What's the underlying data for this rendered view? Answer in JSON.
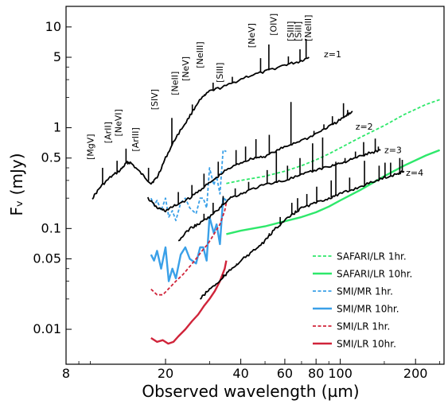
{
  "chart_data": {
    "type": "line",
    "xlabel": "Observed wavelength (µm)",
    "ylabel": "Fᵥ (mJy)",
    "xscale": "log",
    "yscale": "log",
    "xlim": [
      8,
      260
    ],
    "ylim": [
      0.0045,
      16
    ],
    "x_ticks": [
      {
        "value": 8,
        "label": "8"
      },
      {
        "value": 20,
        "label": "20"
      },
      {
        "value": 40,
        "label": "40"
      },
      {
        "value": 60,
        "label": "60"
      },
      {
        "value": 80,
        "label": "80"
      },
      {
        "value": 100,
        "label": "100"
      },
      {
        "value": 200,
        "label": "200"
      }
    ],
    "y_ticks": [
      {
        "value": 0.01,
        "label": "0.01"
      },
      {
        "value": 0.05,
        "label": "0.05"
      },
      {
        "value": 0.1,
        "label": "0.1"
      },
      {
        "value": 0.5,
        "label": "0.5"
      },
      {
        "value": 1,
        "label": "1"
      },
      {
        "value": 5,
        "label": "5"
      },
      {
        "value": 10,
        "label": "10"
      }
    ],
    "spectra": [
      {
        "label": "z=1",
        "label_at": [
          86,
          5.4
        ],
        "points": [
          [
            10.2,
            0.2
          ],
          [
            11,
            0.26
          ],
          [
            12,
            0.32
          ],
          [
            13.2,
            0.38
          ],
          [
            14,
            0.45
          ],
          [
            14.5,
            0.45
          ],
          [
            16,
            0.35
          ],
          [
            17.5,
            0.28
          ],
          [
            18.5,
            0.32
          ],
          [
            20,
            0.5
          ],
          [
            22,
            0.8
          ],
          [
            24.5,
            1.2
          ],
          [
            27,
            1.8
          ],
          [
            30,
            2.3
          ],
          [
            35,
            2.6
          ],
          [
            42,
            3.2
          ],
          [
            50,
            3.6
          ],
          [
            60,
            4.2
          ],
          [
            68,
            4.5
          ],
          [
            75,
            5.0
          ]
        ],
        "lines": [
          [
            11.2,
            0.4
          ],
          [
            12.8,
            0.47
          ],
          [
            13.9,
            0.62
          ],
          [
            17.1,
            0.4
          ],
          [
            21.2,
            1.25
          ],
          [
            25.6,
            1.7
          ],
          [
            28.6,
            2.15
          ],
          [
            31,
            2.8
          ],
          [
            37,
            3.2
          ],
          [
            48,
            4.9
          ],
          [
            51.8,
            6.7
          ],
          [
            62,
            5.1
          ],
          [
            69,
            6.0
          ],
          [
            73,
            7.6
          ]
        ]
      },
      {
        "label": "z=2",
        "label_at": [
          115,
          1.03
        ],
        "points": [
          [
            17,
            0.2
          ],
          [
            18.5,
            0.16
          ],
          [
            20,
            0.15
          ],
          [
            22,
            0.17
          ],
          [
            25,
            0.2
          ],
          [
            28,
            0.25
          ],
          [
            31,
            0.3
          ],
          [
            35,
            0.38
          ],
          [
            40,
            0.45
          ],
          [
            45,
            0.5
          ],
          [
            50,
            0.52
          ],
          [
            58,
            0.62
          ],
          [
            65,
            0.7
          ],
          [
            75,
            0.8
          ],
          [
            85,
            0.95
          ],
          [
            95,
            1.1
          ],
          [
            105,
            1.3
          ],
          [
            112,
            1.45
          ]
        ],
        "lines": [
          [
            22.5,
            0.23
          ],
          [
            25.5,
            0.27
          ],
          [
            28.5,
            0.35
          ],
          [
            32.5,
            0.46
          ],
          [
            38.3,
            0.6
          ],
          [
            41.8,
            0.65
          ],
          [
            46,
            0.77
          ],
          [
            52,
            0.85
          ],
          [
            63.5,
            1.8
          ],
          [
            78.5,
            0.93
          ],
          [
            86,
            1.08
          ],
          [
            93,
            1.3
          ],
          [
            103,
            1.75
          ],
          [
            107,
            1.5
          ]
        ]
      },
      {
        "label": "z=3",
        "label_at": [
          150,
          0.6
        ],
        "points": [
          [
            22.5,
            0.075
          ],
          [
            25,
            0.1
          ],
          [
            27,
            0.11
          ],
          [
            30,
            0.13
          ],
          [
            33,
            0.16
          ],
          [
            36,
            0.2
          ],
          [
            40,
            0.22
          ],
          [
            45,
            0.25
          ],
          [
            52,
            0.28
          ],
          [
            60,
            0.3
          ],
          [
            70,
            0.34
          ],
          [
            80,
            0.38
          ],
          [
            92,
            0.42
          ],
          [
            102,
            0.45
          ],
          [
            115,
            0.5
          ],
          [
            128,
            0.55
          ],
          [
            145,
            0.6
          ]
        ],
        "lines": [
          [
            28.5,
            0.14
          ],
          [
            31,
            0.18
          ],
          [
            34,
            0.21
          ],
          [
            38,
            0.25
          ],
          [
            43,
            0.29
          ],
          [
            51,
            0.38
          ],
          [
            55.5,
            0.58
          ],
          [
            61.5,
            0.42
          ],
          [
            69,
            0.5
          ],
          [
            77.5,
            0.7
          ],
          [
            85,
            0.8
          ],
          [
            104.5,
            0.5
          ],
          [
            115,
            0.58
          ],
          [
            124,
            0.72
          ],
          [
            138,
            0.78
          ],
          [
            142,
            0.65
          ]
        ]
      },
      {
        "label": "z=4",
        "label_at": [
          183,
          0.36
        ],
        "points": [
          [
            27.5,
            0.02
          ],
          [
            30,
            0.025
          ],
          [
            33,
            0.03
          ],
          [
            36,
            0.038
          ],
          [
            40,
            0.048
          ],
          [
            45,
            0.06
          ],
          [
            50,
            0.075
          ],
          [
            55,
            0.1
          ],
          [
            60,
            0.12
          ],
          [
            65,
            0.14
          ],
          [
            70,
            0.16
          ],
          [
            80,
            0.18
          ],
          [
            90,
            0.2
          ],
          [
            100,
            0.22
          ],
          [
            115,
            0.25
          ],
          [
            130,
            0.28
          ],
          [
            150,
            0.32
          ],
          [
            170,
            0.35
          ],
          [
            180,
            0.37
          ]
        ],
        "lines": [
          [
            34,
            0.035
          ],
          [
            38.5,
            0.045
          ],
          [
            42.5,
            0.055
          ],
          [
            49,
            0.072
          ],
          [
            52,
            0.09
          ],
          [
            57.5,
            0.13
          ],
          [
            64,
            0.18
          ],
          [
            67.5,
            0.2
          ],
          [
            73.5,
            0.22
          ],
          [
            80.5,
            0.26
          ],
          [
            92,
            0.3
          ],
          [
            96,
            0.46
          ],
          [
            109,
            0.32
          ],
          [
            125,
            0.47
          ],
          [
            143,
            0.42
          ],
          [
            151,
            0.45
          ],
          [
            159,
            0.45
          ],
          [
            173,
            0.5
          ],
          [
            177,
            0.48
          ]
        ]
      }
    ],
    "sensitivity_curves": [
      {
        "name": "SAFARI/LR 1hr.",
        "color": "#2ee86b",
        "style": "dashed",
        "points": [
          [
            35,
            0.28
          ],
          [
            40,
            0.3
          ],
          [
            50,
            0.33
          ],
          [
            60,
            0.37
          ],
          [
            70,
            0.42
          ],
          [
            80,
            0.48
          ],
          [
            90,
            0.55
          ],
          [
            100,
            0.63
          ],
          [
            120,
            0.8
          ],
          [
            150,
            1.05
          ],
          [
            180,
            1.35
          ],
          [
            220,
            1.7
          ],
          [
            250,
            1.9
          ]
        ]
      },
      {
        "name": "SAFARI/LR 10hr.",
        "color": "#2ee86b",
        "style": "solid",
        "points": [
          [
            35,
            0.088
          ],
          [
            40,
            0.095
          ],
          [
            50,
            0.105
          ],
          [
            60,
            0.118
          ],
          [
            70,
            0.13
          ],
          [
            80,
            0.145
          ],
          [
            90,
            0.165
          ],
          [
            100,
            0.19
          ],
          [
            120,
            0.24
          ],
          [
            150,
            0.33
          ],
          [
            180,
            0.42
          ],
          [
            220,
            0.53
          ],
          [
            250,
            0.6
          ]
        ]
      },
      {
        "name": "SMI/MR 1hr.",
        "color": "#3aa0e8",
        "style": "dashed",
        "points": [
          [
            17.5,
            0.2
          ],
          [
            18,
            0.17
          ],
          [
            18.5,
            0.19
          ],
          [
            19.2,
            0.15
          ],
          [
            20,
            0.2
          ],
          [
            20.6,
            0.13
          ],
          [
            21.3,
            0.15
          ],
          [
            22,
            0.12
          ],
          [
            23,
            0.18
          ],
          [
            24,
            0.2
          ],
          [
            25,
            0.16
          ],
          [
            26.5,
            0.14
          ],
          [
            27.5,
            0.2
          ],
          [
            28.3,
            0.2
          ],
          [
            29.2,
            0.16
          ],
          [
            30,
            0.4
          ],
          [
            31.2,
            0.27
          ],
          [
            32,
            0.33
          ],
          [
            33,
            0.22
          ],
          [
            34,
            0.6
          ],
          [
            35,
            0.58
          ]
        ]
      },
      {
        "name": "SMI/MR 10hr.",
        "color": "#3aa0e8",
        "style": "solid",
        "points": [
          [
            17.5,
            0.055
          ],
          [
            18,
            0.048
          ],
          [
            18.5,
            0.06
          ],
          [
            19.2,
            0.04
          ],
          [
            20,
            0.065
          ],
          [
            20.6,
            0.03
          ],
          [
            21.3,
            0.04
          ],
          [
            22,
            0.032
          ],
          [
            23,
            0.055
          ],
          [
            24,
            0.065
          ],
          [
            25,
            0.05
          ],
          [
            26.5,
            0.045
          ],
          [
            27.5,
            0.065
          ],
          [
            28.3,
            0.065
          ],
          [
            29.2,
            0.048
          ],
          [
            30,
            0.13
          ],
          [
            31.2,
            0.09
          ],
          [
            32,
            0.11
          ],
          [
            33,
            0.07
          ],
          [
            34,
            0.2
          ],
          [
            35,
            0.19
          ]
        ]
      },
      {
        "name": "SMI/LR 1hr.",
        "color": "#d0243a",
        "style": "dashed",
        "points": [
          [
            17.5,
            0.025
          ],
          [
            18.5,
            0.022
          ],
          [
            19.5,
            0.022
          ],
          [
            20.5,
            0.025
          ],
          [
            22,
            0.03
          ],
          [
            23.5,
            0.035
          ],
          [
            25,
            0.042
          ],
          [
            26.5,
            0.05
          ],
          [
            28,
            0.06
          ],
          [
            29.5,
            0.07
          ],
          [
            31,
            0.085
          ],
          [
            33,
            0.11
          ],
          [
            34.5,
            0.15
          ],
          [
            35,
            0.18
          ]
        ]
      },
      {
        "name": "SMI/LR 10hr.",
        "color": "#d0243a",
        "style": "solid",
        "points": [
          [
            17.5,
            0.0082
          ],
          [
            18.5,
            0.0075
          ],
          [
            19.5,
            0.0078
          ],
          [
            20.5,
            0.0072
          ],
          [
            21.5,
            0.0075
          ],
          [
            22.5,
            0.0085
          ],
          [
            24,
            0.01
          ],
          [
            25.5,
            0.012
          ],
          [
            27,
            0.014
          ],
          [
            28.5,
            0.017
          ],
          [
            30,
            0.02
          ],
          [
            31.5,
            0.024
          ],
          [
            33,
            0.03
          ],
          [
            34.5,
            0.04
          ],
          [
            35,
            0.048
          ]
        ]
      }
    ],
    "line_ids": [
      {
        "text": "[MgV]",
        "x": 10.3,
        "y": 0.48
      },
      {
        "text": "[ArII]",
        "x": 12.1,
        "y": 0.7
      },
      {
        "text": "[NeVI]",
        "x": 13.3,
        "y": 0.82
      },
      {
        "text": "[ArIII]",
        "x": 15.6,
        "y": 0.58
      },
      {
        "text": "[SIV]",
        "x": 18.6,
        "y": 1.5
      },
      {
        "text": "[NeII]",
        "x": 22.4,
        "y": 2.1
      },
      {
        "text": "[NeV]",
        "x": 24.7,
        "y": 2.9
      },
      {
        "text": "[NeIII]",
        "x": 28.2,
        "y": 3.9
      },
      {
        "text": "[SIII]",
        "x": 33.9,
        "y": 2.8
      },
      {
        "text": "[NeV]",
        "x": 45.5,
        "y": 6.2
      },
      {
        "text": "[OIV]",
        "x": 55.5,
        "y": 8.2
      },
      {
        "text": "[SIII]",
        "x": 65.1,
        "y": 7.2
      },
      {
        "text": "[SiII]",
        "x": 69.7,
        "y": 7.2
      },
      {
        "text": "[NeIII]",
        "x": 76.4,
        "y": 7.2
      }
    ],
    "legend": {
      "placement": "bottom-right",
      "entries": [
        {
          "label": "SAFARI/LR 1hr.",
          "color": "#2ee86b",
          "style": "dashed"
        },
        {
          "label": "SAFARI/LR 10hr.",
          "color": "#2ee86b",
          "style": "solid"
        },
        {
          "label": "SMI/MR 1hr.",
          "color": "#3aa0e8",
          "style": "dashed"
        },
        {
          "label": "SMI/MR 10hr.",
          "color": "#3aa0e8",
          "style": "solid"
        },
        {
          "label": "SMI/LR 1hr.",
          "color": "#d0243a",
          "style": "dashed"
        },
        {
          "label": "SMI/LR 10hr.",
          "color": "#d0243a",
          "style": "solid"
        }
      ]
    },
    "grid": false
  }
}
